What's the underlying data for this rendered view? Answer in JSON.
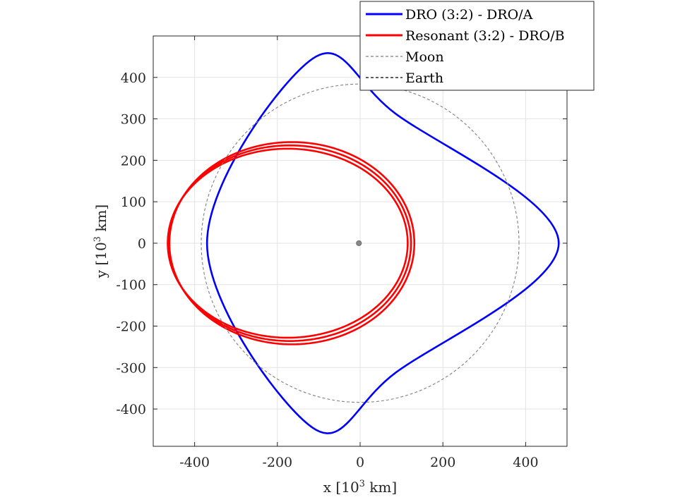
{
  "chart_data": {
    "type": "line",
    "title": "",
    "xlabel": "x [10",
    "xlabel_sup": "3",
    "xlabel_suffix": " km]",
    "ylabel": "y [10",
    "ylabel_sup": "3",
    "ylabel_suffix": " km]",
    "xlim": [
      -500,
      500
    ],
    "ylim": [
      -490,
      500
    ],
    "xticks": [
      -400,
      -200,
      0,
      200,
      400
    ],
    "yticks": [
      -400,
      -300,
      -200,
      -100,
      0,
      100,
      200,
      300,
      400
    ],
    "xtick_labels": [
      "-400",
      "-200",
      "0",
      "200",
      "400"
    ],
    "ytick_labels": [
      "-400",
      "-300",
      "-200",
      "-100",
      "0",
      "100",
      "200",
      "300",
      "400"
    ],
    "grid": true,
    "aspect": "equal",
    "legend_position": "top-right",
    "series": [
      {
        "name": "DRO (3:2) - DRO/A",
        "color": "#0000ff",
        "style": "solid",
        "shape": "three-lobed closed orbit",
        "key_points": [
          [
            480,
            0
          ],
          [
            85,
            313
          ],
          [
            -115,
            445
          ],
          [
            -370,
            0
          ],
          [
            -115,
            -445
          ],
          [
            85,
            -313
          ]
        ]
      },
      {
        "name": "Resonant (3:2) - DRO/B",
        "color": "#ff0000",
        "style": "solid",
        "shape": "ellipse repeated three times with slight drift",
        "center": [
          -170,
          0
        ],
        "semi_axes_x": [
          290,
          293,
          296
        ],
        "semi_axes_y": [
          228,
          236,
          244
        ],
        "offsets_x": [
          -5,
          0,
          5
        ]
      },
      {
        "name": "Moon",
        "color": "#808080",
        "style": "dashed",
        "shape": "circle",
        "center": [
          0,
          0
        ],
        "radius": 384
      },
      {
        "name": "Earth",
        "color": "#000000",
        "style": "dashed",
        "shape": "point",
        "center": [
          -3,
          0
        ]
      }
    ]
  }
}
